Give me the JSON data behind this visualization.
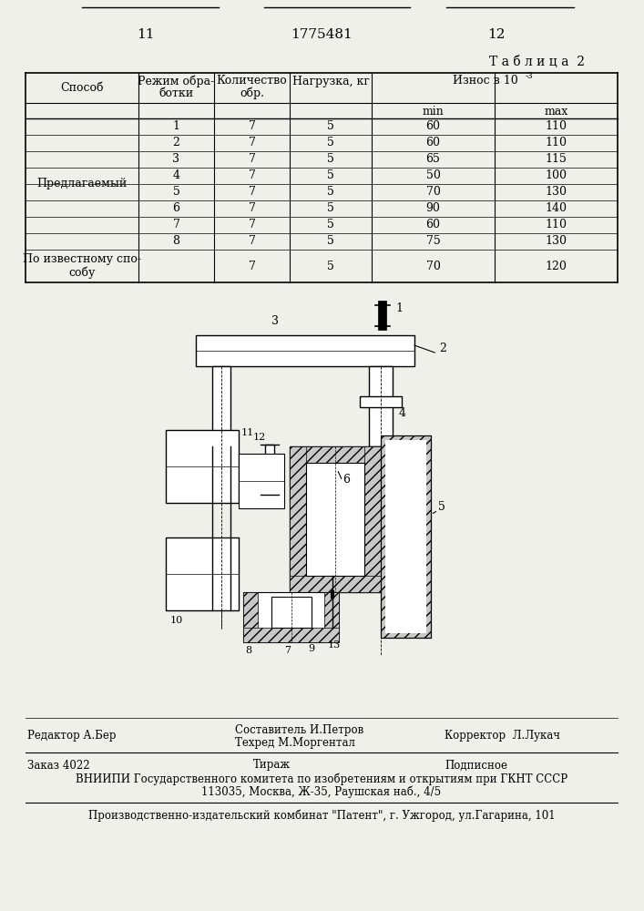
{
  "page_numbers": [
    "11",
    "1775481",
    "12"
  ],
  "table_title": "Т а б л и ц а  2",
  "row1_label": "Предлагаемый",
  "row1_data": [
    [
      "1",
      "7",
      "5",
      "60",
      "110"
    ],
    [
      "2",
      "7",
      "5",
      "60",
      "110"
    ],
    [
      "3",
      "7",
      "5",
      "65",
      "115"
    ],
    [
      "4",
      "7",
      "5",
      "50",
      "100"
    ],
    [
      "5",
      "7",
      "5",
      "70",
      "130"
    ],
    [
      "6",
      "7",
      "5",
      "90",
      "140"
    ],
    [
      "7",
      "7",
      "5",
      "60",
      "110"
    ],
    [
      "8",
      "7",
      "5",
      "75",
      "130"
    ]
  ],
  "row2_label": "По известному спо-\nсобу",
  "row2_data": [
    [
      "",
      "7",
      "5",
      "70",
      "120"
    ]
  ],
  "footer_editor": "Редактор А.Бер",
  "footer_composer": "Составитель И.Петров",
  "footer_tech": "Техред М.Моргентал",
  "footer_corrector": "Корректор  Л.Лукач",
  "footer_order": "Заказ 4022",
  "footer_tirazh": "Тираж",
  "footer_podpisnoe": "Подписное",
  "footer_vniiipi": "ВНИИПИ Государственного комитета по изобретениям и открытиям при ГКНТ СССР",
  "footer_address": "113035, Москва, Ж-35, Раушская наб., 4/5",
  "footer_factory": "Производственно-издательский комбинат \"Патент\", г. Ужгород, ул.Гагарина, 101",
  "bg_color": "#f0f0eb"
}
